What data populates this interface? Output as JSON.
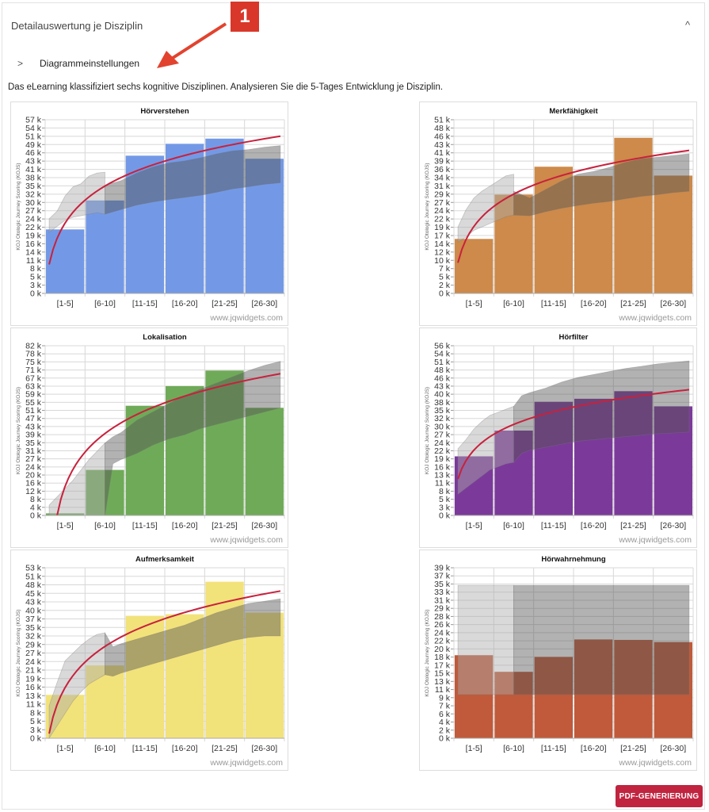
{
  "header": {
    "title": "Detailauswertung je Disziplin",
    "collapse_icon": "chevron-up-icon",
    "collapse_glyph": "^"
  },
  "settings": {
    "label": "Diagrammeinstellungen",
    "expand_glyph": ">"
  },
  "description": "Das eLearning klassifiziert sechs kognitive Disziplinen. Analysieren Sie die 5-Tages Entwicklung je Disziplin.",
  "annotation": {
    "number": "1",
    "color": "#d9372a"
  },
  "footer": {
    "pdf_button": "PDF-GENERIERUNG",
    "pdf_color": "#c0243f"
  },
  "watermark": "www.jqwidgets.com",
  "chart_data": [
    {
      "type": "bar",
      "title": "Hörverstehen",
      "ylabel": "KOJ Otologic Journey Scoring (KOJS)",
      "categories": [
        "[1-5]",
        "[6-10]",
        "[11-15]",
        "[16-20]",
        "[21-25]",
        "[26-30]"
      ],
      "values": [
        21000,
        30500,
        45200,
        49100,
        50800,
        44200
      ],
      "color": "#7399e6",
      "ylim": [
        0,
        57000
      ],
      "yticks": [
        "0 k",
        "3 k",
        "5 k",
        "8 k",
        "11 k",
        "14 k",
        "16 k",
        "19 k",
        "22 k",
        "24 k",
        "27 k",
        "30 k",
        "32 k",
        "35 k",
        "38 k",
        "41 k",
        "43 k",
        "46 k",
        "49 k",
        "51 k",
        "54 k",
        "57 k"
      ],
      "trend": {
        "x": [
          1,
          30
        ],
        "start": 9500,
        "end": 51600
      },
      "band_early": {
        "x": [
          1,
          2,
          3,
          4,
          5,
          6,
          7,
          8
        ],
        "low": [
          20000,
          22000,
          24000,
          25000,
          25500,
          26000,
          26500,
          26000
        ],
        "high": [
          24500,
          27000,
          32000,
          35000,
          36000,
          38500,
          39500,
          39800
        ]
      },
      "band_late": {
        "x": [
          8,
          10,
          12,
          14,
          16,
          18,
          20,
          22,
          24,
          26,
          28,
          30
        ],
        "low": [
          26000,
          27500,
          29000,
          30000,
          30800,
          31500,
          32200,
          33200,
          34300,
          35000,
          35800,
          36300
        ],
        "high": [
          35500,
          37000,
          39500,
          41500,
          42800,
          43500,
          44500,
          45800,
          46800,
          47200,
          48000,
          48500
        ]
      },
      "grid": true
    },
    {
      "type": "bar",
      "title": "Merkfähigkeit",
      "ylabel": "KOJ Otologic Journey Scoring (KOJS)",
      "categories": [
        "[1-5]",
        "[6-10]",
        "[11-15]",
        "[16-20]",
        "[21-25]",
        "[26-30]"
      ],
      "values": [
        16000,
        29000,
        37200,
        34500,
        45700,
        34600
      ],
      "color": "#cd8a4a",
      "ylim": [
        0,
        51000
      ],
      "yticks": [
        "0 k",
        "2 k",
        "5 k",
        "7 k",
        "10 k",
        "12 k",
        "14 k",
        "17 k",
        "19 k",
        "22 k",
        "24 k",
        "27 k",
        "29 k",
        "31 k",
        "34 k",
        "36 k",
        "39 k",
        "41 k",
        "43 k",
        "46 k",
        "48 k",
        "51 k"
      ],
      "trend": {
        "x": [
          1,
          30
        ],
        "start": 9000,
        "end": 42000
      },
      "band_early": {
        "x": [
          1,
          2,
          3,
          4,
          5,
          6,
          7,
          8
        ],
        "low": [
          15000,
          16500,
          18500,
          19500,
          20500,
          21500,
          22500,
          23000
        ],
        "high": [
          19500,
          24500,
          28000,
          30000,
          31500,
          33000,
          34500,
          35000
        ]
      },
      "band_late": {
        "x": [
          8,
          10,
          12,
          14,
          16,
          18,
          20,
          22,
          24,
          26,
          28,
          30
        ],
        "low": [
          23000,
          22800,
          24000,
          25000,
          25800,
          26500,
          27000,
          27800,
          28500,
          29000,
          29600,
          30000
        ],
        "high": [
          30000,
          28000,
          30500,
          33000,
          35000,
          35800,
          37000,
          38500,
          39500,
          40000,
          40500,
          41000
        ]
      },
      "grid": true
    },
    {
      "type": "bar",
      "title": "Lokalisation",
      "ylabel": "KOJ Otologic Journey Scoring (KOJS)",
      "categories": [
        "[1-5]",
        "[6-10]",
        "[11-15]",
        "[16-20]",
        "[21-25]",
        "[26-30]"
      ],
      "values": [
        1000,
        22000,
        53000,
        62500,
        70000,
        52000
      ],
      "color": "#6faa58",
      "ylim": [
        0,
        82000
      ],
      "yticks": [
        "0 k",
        "4 k",
        "8 k",
        "12 k",
        "16 k",
        "20 k",
        "24 k",
        "27 k",
        "31 k",
        "35 k",
        "39 k",
        "43 k",
        "47 k",
        "51 k",
        "55 k",
        "59 k",
        "63 k",
        "67 k",
        "71 k",
        "75 k",
        "78 k",
        "82 k"
      ],
      "trend": {
        "x": [
          2,
          30
        ],
        "start": 0,
        "end": 68500
      },
      "band_early": {
        "x": [
          1,
          2,
          3,
          4,
          5,
          6,
          7,
          8
        ],
        "low": [
          0,
          0,
          0,
          0,
          0,
          0,
          0,
          0
        ],
        "high": [
          5000,
          9000,
          13000,
          17000,
          22000,
          27000,
          31000,
          35000
        ]
      },
      "band_late": {
        "x": [
          8,
          9,
          10,
          12,
          14,
          16,
          18,
          20,
          22,
          24,
          26,
          28,
          30
        ],
        "low": [
          0,
          25000,
          27000,
          30000,
          34000,
          37000,
          39000,
          42000,
          44000,
          46000,
          48000,
          50000,
          52000
        ],
        "high": [
          35000,
          38000,
          40000,
          46000,
          50000,
          54000,
          58000,
          61000,
          64000,
          67000,
          70000,
          72500,
          74500
        ]
      },
      "grid": true
    },
    {
      "type": "bar",
      "title": "Hörfilter",
      "ylabel": "KOJ Otologic Journey Scoring (KOJS)",
      "categories": [
        "[1-5]",
        "[6-10]",
        "[11-15]",
        "[16-20]",
        "[21-25]",
        "[26-30]"
      ],
      "values": [
        19500,
        28000,
        37500,
        38500,
        41000,
        36000
      ],
      "color": "#7b3a9a",
      "ylim": [
        0,
        56000
      ],
      "yticks": [
        "0 k",
        "3 k",
        "5 k",
        "8 k",
        "11 k",
        "13 k",
        "16 k",
        "19 k",
        "22 k",
        "24 k",
        "27 k",
        "30 k",
        "32 k",
        "35 k",
        "38 k",
        "40 k",
        "43 k",
        "46 k",
        "48 k",
        "51 k",
        "54 k",
        "56 k"
      ],
      "trend": {
        "x": [
          1,
          30
        ],
        "start": 12000,
        "end": 41500
      },
      "band_early": {
        "x": [
          1,
          2,
          3,
          4,
          5,
          6,
          7,
          8
        ],
        "low": [
          7000,
          9000,
          11000,
          13000,
          15000,
          16000,
          17000,
          17500
        ],
        "high": [
          22000,
          25000,
          28500,
          31000,
          33000,
          34000,
          35000,
          36000
        ]
      },
      "band_late": {
        "x": [
          8,
          9,
          10,
          12,
          14,
          16,
          18,
          20,
          22,
          24,
          26,
          28,
          30
        ],
        "low": [
          17500,
          20500,
          21500,
          22500,
          23500,
          24500,
          25000,
          25500,
          26000,
          26500,
          27000,
          27200,
          27500
        ],
        "high": [
          36000,
          39500,
          40500,
          42000,
          44000,
          45500,
          46500,
          47500,
          48500,
          49200,
          50000,
          50500,
          51000
        ]
      },
      "grid": true
    },
    {
      "type": "bar",
      "title": "Aufmerksamkeit",
      "ylabel": "KOJ Otologic Journey Scoring (KOJS)",
      "categories": [
        "[1-5]",
        "[6-10]",
        "[11-15]",
        "[16-20]",
        "[21-25]",
        "[26-30]"
      ],
      "values": [
        14000,
        23500,
        39500,
        40000,
        50500,
        40500
      ],
      "color": "#f2e27a",
      "ylim": [
        0,
        55000
      ],
      "yticks": [
        "0 k",
        "3 k",
        "5 k",
        "8 k",
        "11 k",
        "13 k",
        "16 k",
        "19 k",
        "21 k",
        "24 k",
        "27 k",
        "29 k",
        "32 k",
        "35 k",
        "37 k",
        "40 k",
        "43 k",
        "45 k",
        "48 k",
        "51 k",
        "53 k"
      ],
      "trend": {
        "x": [
          1,
          30
        ],
        "start": 1500,
        "end": 47500
      },
      "band_early": {
        "x": [
          1,
          2,
          3,
          4,
          5,
          6,
          7,
          8
        ],
        "low": [
          0,
          4000,
          8000,
          12000,
          15000,
          17500,
          19000,
          20500
        ],
        "high": [
          10500,
          18000,
          25000,
          27500,
          30000,
          32000,
          33500,
          34000
        ]
      },
      "band_late": {
        "x": [
          8,
          9,
          10,
          12,
          14,
          16,
          18,
          20,
          22,
          24,
          26,
          28,
          30
        ],
        "low": [
          20500,
          20000,
          21000,
          22500,
          24000,
          25500,
          27000,
          28500,
          30000,
          31500,
          32500,
          33000,
          33000
        ],
        "high": [
          34000,
          29500,
          30500,
          32000,
          33500,
          35000,
          36500,
          38500,
          40500,
          42000,
          43500,
          44200,
          45000
        ]
      },
      "grid": true
    },
    {
      "type": "bar",
      "title": "Hörwahrnehmung",
      "ylabel": "KOJ Otologic Journey Scoring (KOJS)",
      "categories": [
        "[1-5]",
        "[6-10]",
        "[11-15]",
        "[16-20]",
        "[21-25]",
        "[26-30]"
      ],
      "values": [
        19000,
        15200,
        18600,
        22600,
        22500,
        22000
      ],
      "color": "#c05a3a",
      "ylim": [
        0,
        39000
      ],
      "yticks": [
        "0 k",
        "2 k",
        "4 k",
        "6 k",
        "7 k",
        "9 k",
        "11 k",
        "13 k",
        "15 k",
        "17 k",
        "18 k",
        "20 k",
        "22 k",
        "24 k",
        "26 k",
        "28 k",
        "29 k",
        "31 k",
        "33 k",
        "35 k",
        "37 k",
        "39 k"
      ],
      "trend": null,
      "band_early": {
        "x": [
          1,
          8
        ],
        "low": [
          10000,
          10000
        ],
        "high": [
          35000,
          35000
        ]
      },
      "band_late": {
        "x": [
          8,
          30
        ],
        "low": [
          10000,
          10000
        ],
        "high": [
          35000,
          35000
        ]
      },
      "grid": true
    }
  ]
}
